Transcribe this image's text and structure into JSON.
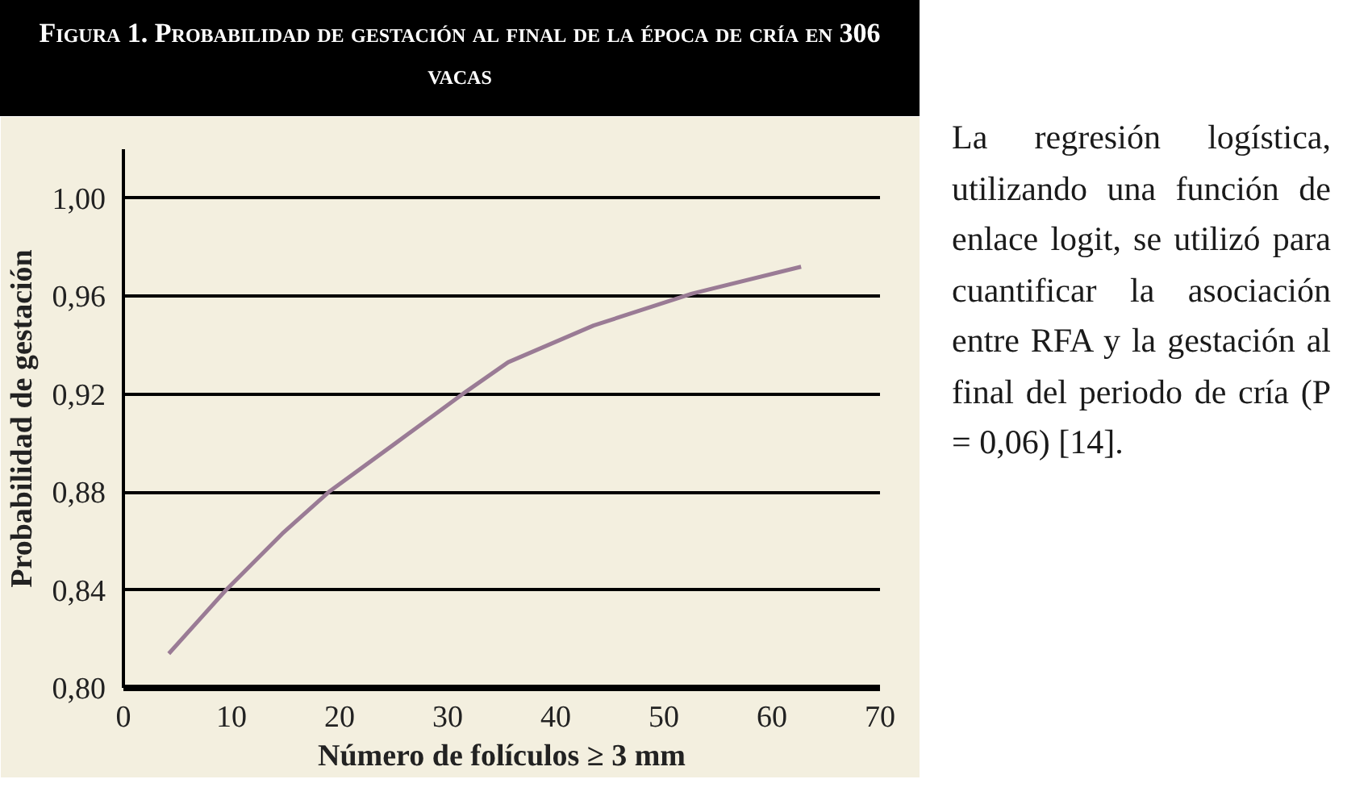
{
  "chart_data": {
    "type": "line",
    "title": "Figura 1. Probabilidad de gestación al final de la época de cría en 306 vacas",
    "xlabel": "Número de folículos ≥ 3 mm",
    "ylabel": "Probabilidad de gestación",
    "x": [
      4.2,
      9.5,
      14.7,
      19,
      25.2,
      31.7,
      35.6,
      43.5,
      52.6,
      62.7
    ],
    "series": [
      {
        "color": "#9a7b95",
        "values": [
          0.814,
          0.84,
          0.863,
          0.88,
          0.9,
          0.921,
          0.933,
          0.948,
          0.961,
          0.972
        ]
      }
    ],
    "xlim": [
      0,
      70
    ],
    "xticks": [
      0,
      10,
      20,
      30,
      40,
      50,
      60,
      70
    ],
    "ylim": [
      0.8,
      1.02
    ],
    "yticks": [
      {
        "value": 0.8,
        "label": "0,80"
      },
      {
        "value": 0.84,
        "label": "0,84"
      },
      {
        "value": 0.88,
        "label": "0,88"
      },
      {
        "value": 0.92,
        "label": "0,92"
      },
      {
        "value": 0.96,
        "label": "0,96"
      },
      {
        "value": 1.0,
        "label": "1,00"
      }
    ],
    "grid": "y",
    "marker": "none",
    "line_style": "solid",
    "annotations": [
      "La regresión logística, utilizando una función de enlace logit, se utilizó para cuantificar la asociación entre RFA y la gestación al final del periodo de cría (P = 0,06) [14]."
    ]
  }
}
